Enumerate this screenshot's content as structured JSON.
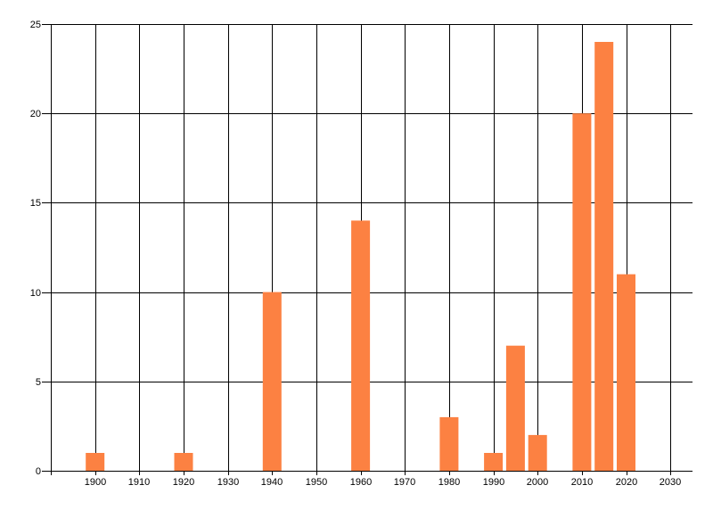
{
  "chart_data": {
    "type": "bar",
    "title": "",
    "xlabel": "",
    "ylabel": "",
    "grid": true,
    "legend": null,
    "background_color": "#ffffff",
    "bar_color": "#FC8142",
    "grid_color": "#000000",
    "tick_label_color": "#000000",
    "xlim": [
      1890,
      2035
    ],
    "ylim": [
      0,
      25
    ],
    "x_ticks": [
      1900,
      1910,
      1920,
      1930,
      1940,
      1950,
      1960,
      1970,
      1980,
      1990,
      2000,
      2010,
      2020,
      2030
    ],
    "x_tick_labels": [
      "1900",
      "1910",
      "1920",
      "1930",
      "1940",
      "1950",
      "1960",
      "1970",
      "1980",
      "1990",
      "2000",
      "2010",
      "2020",
      "2030"
    ],
    "y_ticks": [
      0,
      5,
      10,
      15,
      20,
      25
    ],
    "y_tick_labels": [
      "0",
      "5",
      "10",
      "15",
      "20",
      "25"
    ],
    "bars": [
      {
        "year": 1900,
        "value": 1
      },
      {
        "year": 1920,
        "value": 1
      },
      {
        "year": 1940,
        "value": 10
      },
      {
        "year": 1960,
        "value": 14
      },
      {
        "year": 1980,
        "value": 3
      },
      {
        "year": 1990,
        "value": 1
      },
      {
        "year": 1995,
        "value": 7
      },
      {
        "year": 2000,
        "value": 2
      },
      {
        "year": 2010,
        "value": 20
      },
      {
        "year": 2015,
        "value": 24
      },
      {
        "year": 2020,
        "value": 11
      }
    ]
  }
}
